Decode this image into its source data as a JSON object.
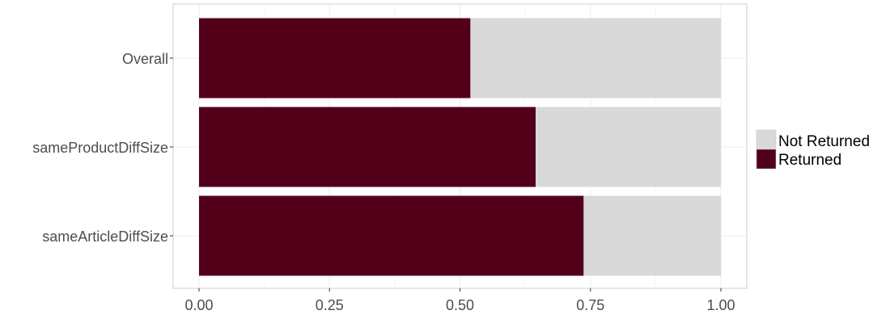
{
  "chart_data": {
    "type": "bar",
    "orientation": "horizontal",
    "stacked": true,
    "proportional": true,
    "categories": [
      "Overall",
      "sameProductDiffSize",
      "sameArticleDiffSize"
    ],
    "series": [
      {
        "name": "Returned",
        "values": [
          0.52,
          0.645,
          0.737
        ],
        "color": "#52001a"
      },
      {
        "name": "Not Returned",
        "values": [
          0.48,
          0.355,
          0.263
        ],
        "color": "#d9d9d9"
      }
    ],
    "title": "",
    "xlabel": "",
    "ylabel": "",
    "xlim": [
      0,
      1
    ],
    "xticks": [
      "0.00",
      "0.25",
      "0.50",
      "0.75",
      "1.00"
    ],
    "grid": true,
    "legend": {
      "position": "right",
      "entries": [
        "Not Returned",
        "Returned"
      ]
    }
  }
}
